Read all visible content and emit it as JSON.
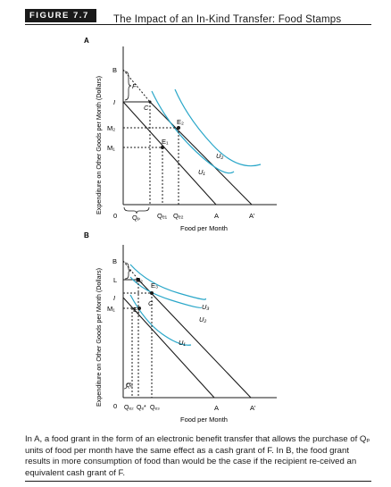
{
  "figure": {
    "number": "FIGURE 7.7",
    "title": "The Impact of an In-Kind Transfer: Food Stamps",
    "caption": "In A, a food grant in the form of an electronic benefit transfer that allows the purchase of Qₚ units of food per month have the same effect as a cash grant of F. In B, the food grant results in more consumption of food than would be the case if the recipient re-ceived an equivalent cash grant of F."
  },
  "panel_a": {
    "letter": "A",
    "ylabel": "Expenditure on Other Goods per Month (Dollars)",
    "xlabel": "Food per Month",
    "y_labels": [
      "B",
      "F",
      "I",
      "C",
      "M₂",
      "M₁"
    ],
    "x_labels": [
      "0",
      "Qₚ",
      "Qₑ₁",
      "Qₑ₂",
      "A",
      "A'"
    ],
    "point_labels": [
      "E₂",
      "E₁"
    ],
    "curve_labels": [
      "U₂",
      "U₁"
    ]
  },
  "panel_b": {
    "letter": "B",
    "ylabel": "Expenditure on Other Goods per Month (Dollars)",
    "xlabel": "Food per Month",
    "y_labels": [
      "B",
      "L",
      "I",
      "M₁"
    ],
    "x_labels": [
      "0",
      "Qₑ₂",
      "Qₑ*",
      "Qₑ₃",
      "A",
      "A'"
    ],
    "point_labels": [
      "E₃",
      "E₂",
      "C",
      "E₁"
    ],
    "curve_labels": [
      "U₃",
      "U₂",
      "U₁"
    ],
    "brace_labels": [
      "F",
      "Qₚ"
    ]
  },
  "colors": {
    "curve": "#2aa7c9",
    "ink": "#1a1a1a",
    "badge_bg": "#1a1a1a"
  }
}
